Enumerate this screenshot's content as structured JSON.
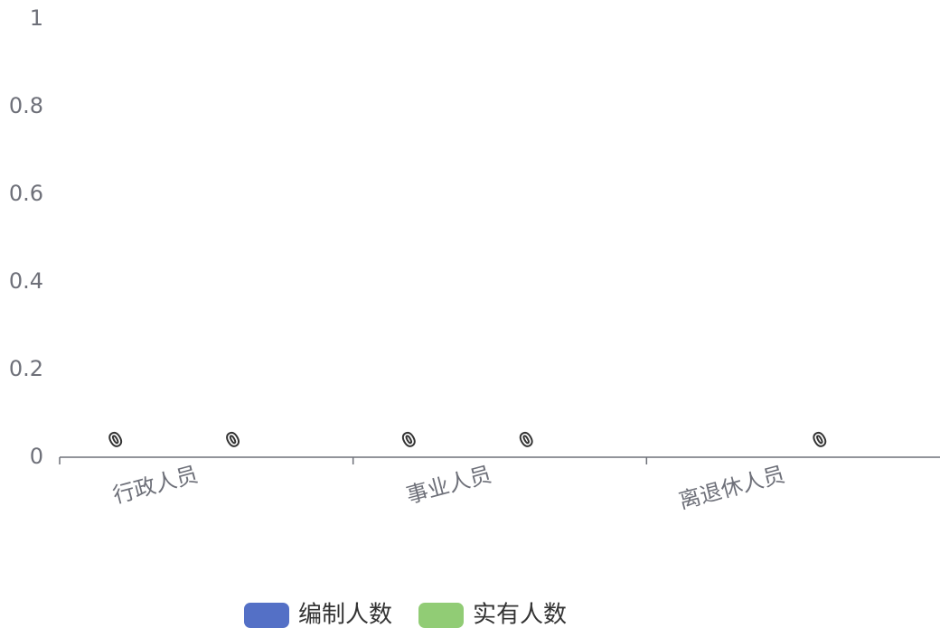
{
  "chart_data": {
    "type": "bar",
    "categories": [
      "行政人员",
      "事业人员",
      "离退休人员"
    ],
    "series": [
      {
        "name": "编制人数",
        "values": [
          0,
          0,
          null
        ],
        "color": "#5470c6"
      },
      {
        "name": "实有人数",
        "values": [
          0,
          0,
          0
        ],
        "color": "#91cc75"
      }
    ],
    "y_ticks": [
      "0",
      "0.2",
      "0.4",
      "0.6",
      "0.8",
      "1"
    ],
    "ylim": [
      0,
      1
    ],
    "xlabel": "",
    "ylabel": "",
    "legend_position": "bottom-center",
    "grid": false
  }
}
